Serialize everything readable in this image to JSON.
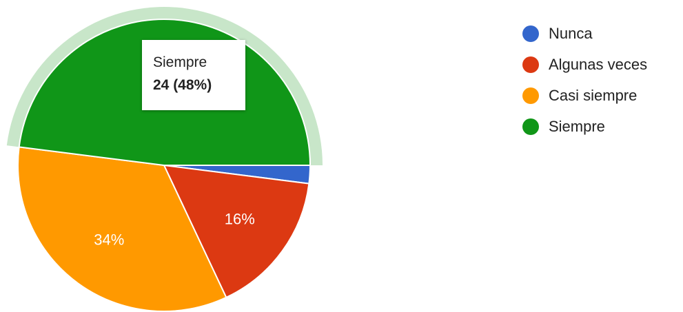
{
  "chart_data": {
    "type": "pie",
    "categories": [
      "Nunca",
      "Algunas veces",
      "Casi siempre",
      "Siempre"
    ],
    "values": [
      1,
      8,
      17,
      24
    ],
    "percent_labels": [
      "",
      "16%",
      "34%",
      ""
    ],
    "colors": [
      "#3366cc",
      "#dc3912",
      "#ff9900",
      "#109618"
    ],
    "highlight_color": "#c8e6c9",
    "highlighted_slice": 3,
    "legend_position": "right",
    "tooltip": {
      "name": "Siempre",
      "value": "24 (48%)"
    }
  }
}
